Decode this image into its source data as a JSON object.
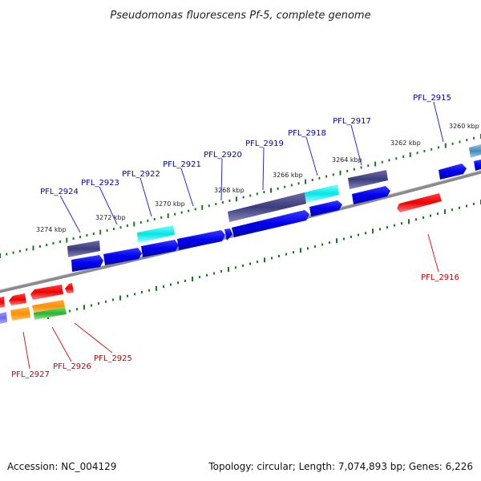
{
  "title": "Pseudomonas fluorescens Pf-5, complete genome",
  "footer": {
    "accession": "Accession: NC_004129",
    "summary": "Topology: circular; Length: 7,074,893 bp; Genes: 6,226"
  },
  "colors": {
    "backbone": "#8a8a8a",
    "tick": "#1a7a1a",
    "forward_label": "#0000b0",
    "reverse_label": "#c00000"
  },
  "tick_labels": [
    {
      "kbp": 3260,
      "text": "3260 kbp"
    },
    {
      "kbp": 3262,
      "text": "3262 kbp"
    },
    {
      "kbp": 3264,
      "text": "3264 kbp"
    },
    {
      "kbp": 3266,
      "text": "3266 kbp"
    },
    {
      "kbp": 3268,
      "text": "3268 kbp"
    },
    {
      "kbp": 3270,
      "text": "3270 kbp"
    },
    {
      "kbp": 3272,
      "text": "3272 kbp"
    },
    {
      "kbp": 3274,
      "text": "3274 kbp"
    }
  ],
  "gene_labels": [
    {
      "text": "PFL_2915",
      "strand": "forward"
    },
    {
      "text": "PFL_2917",
      "strand": "forward"
    },
    {
      "text": "PFL_2918",
      "strand": "forward"
    },
    {
      "text": "PFL_2919",
      "strand": "forward"
    },
    {
      "text": "PFL_2920",
      "strand": "forward"
    },
    {
      "text": "PFL_2921",
      "strand": "forward"
    },
    {
      "text": "PFL_2922",
      "strand": "forward"
    },
    {
      "text": "PFL_2923",
      "strand": "forward"
    },
    {
      "text": "PFL_2924",
      "strand": "forward"
    },
    {
      "text": "PFL_2916",
      "strand": "reverse"
    },
    {
      "text": "PFL_2925",
      "strand": "reverse"
    },
    {
      "text": "PFL_2926",
      "strand": "reverse"
    },
    {
      "text": "PFL_2927",
      "strand": "reverse"
    }
  ]
}
